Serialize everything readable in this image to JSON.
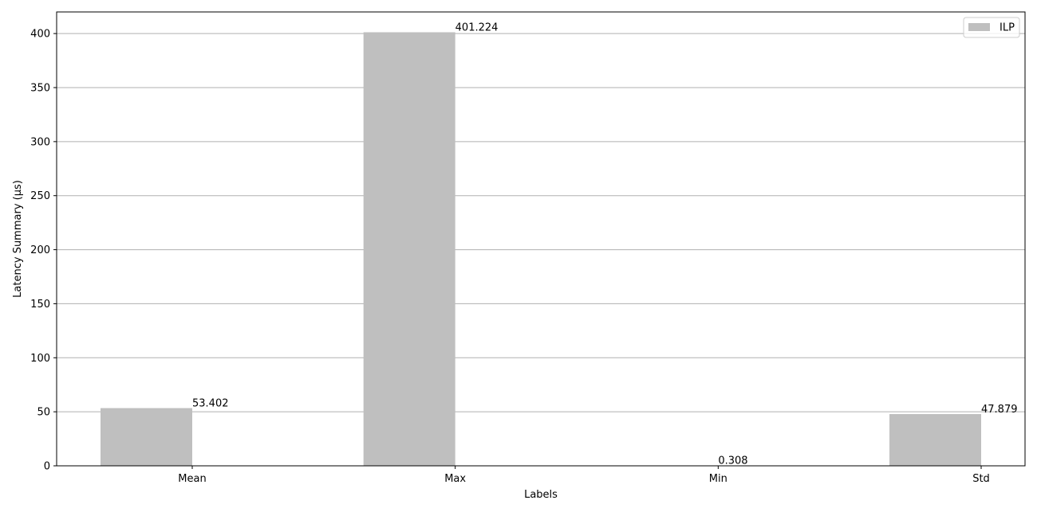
{
  "chart_data": {
    "type": "bar",
    "categories": [
      "Mean",
      "Max",
      "Min",
      "Std"
    ],
    "series": [
      {
        "name": "ILP",
        "values": [
          53.402,
          401.224,
          0.308,
          47.879
        ]
      }
    ],
    "data_labels": [
      "53.402",
      "401.224",
      "0.308",
      "47.879"
    ],
    "xlabel": "Labels",
    "ylabel": "Latency Summary (µs)",
    "ylim": [
      0,
      420
    ],
    "yticks": [
      0,
      50,
      100,
      150,
      200,
      250,
      300,
      350,
      400
    ],
    "grid": "y-major",
    "legend_placement": "top-right",
    "colors": {
      "bar": "#bfbfbf",
      "grid": "#b0b0b0",
      "axis": "#000000"
    }
  }
}
